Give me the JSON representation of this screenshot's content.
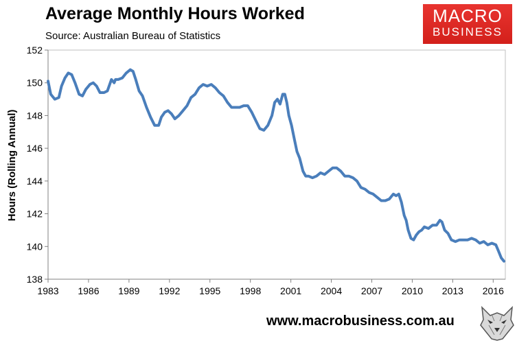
{
  "header": {
    "title": "Average Monthly Hours Worked",
    "subtitle": "Source: Australian Bureau of Statistics"
  },
  "logo": {
    "line1": "MACRO",
    "line2": "BUSINESS",
    "color": "#e02b26"
  },
  "footer": {
    "url": "www.macrobusiness.com.au",
    "mascot_icon": "wolf-head-icon"
  },
  "chart_data": {
    "type": "line",
    "title": "Average Monthly Hours Worked",
    "xlabel": "",
    "ylabel": "Hours (Rolling Annual)",
    "xlim": [
      1983.0,
      2016.9
    ],
    "ylim": [
      138,
      152
    ],
    "yticks": [
      138,
      140,
      142,
      144,
      146,
      148,
      150,
      152
    ],
    "xticks": [
      "1983",
      "1986",
      "1989",
      "1992",
      "1995",
      "1998",
      "2001",
      "2004",
      "2007",
      "2010",
      "2013",
      "2016"
    ],
    "grid": false,
    "line_color": "#4a7ebb",
    "series": [
      {
        "name": "",
        "x": [
          1983.0,
          1983.2,
          1983.5,
          1983.8,
          1984.0,
          1984.25,
          1984.5,
          1984.75,
          1985.0,
          1985.3,
          1985.55,
          1985.8,
          1986.1,
          1986.35,
          1986.6,
          1986.85,
          1987.15,
          1987.4,
          1987.7,
          1987.9,
          1988.0,
          1988.2,
          1988.5,
          1988.8,
          1989.1,
          1989.3,
          1989.5,
          1989.75,
          1990.0,
          1990.3,
          1990.6,
          1990.9,
          1991.2,
          1991.4,
          1991.65,
          1991.9,
          1992.15,
          1992.4,
          1992.7,
          1993.0,
          1993.3,
          1993.6,
          1993.9,
          1994.2,
          1994.5,
          1994.8,
          1995.1,
          1995.4,
          1995.7,
          1996.0,
          1996.3,
          1996.6,
          1996.9,
          1997.2,
          1997.5,
          1997.8,
          1998.1,
          1998.4,
          1998.7,
          1999.0,
          1999.3,
          1999.6,
          1999.8,
          2000.0,
          2000.2,
          2000.4,
          2000.55,
          2000.7,
          2000.85,
          2001.05,
          2001.25,
          2001.45,
          2001.65,
          2001.9,
          2002.1,
          2002.3,
          2002.6,
          2002.9,
          2003.2,
          2003.5,
          2003.8,
          2004.1,
          2004.4,
          2004.7,
          2005.0,
          2005.3,
          2005.6,
          2005.9,
          2006.2,
          2006.5,
          2006.8,
          2007.1,
          2007.4,
          2007.7,
          2008.0,
          2008.3,
          2008.6,
          2008.8,
          2009.0,
          2009.2,
          2009.4,
          2009.55,
          2009.7,
          2009.9,
          2010.1,
          2010.3,
          2010.5,
          2010.7,
          2010.9,
          2011.2,
          2011.5,
          2011.8,
          2012.05,
          2012.2,
          2012.4,
          2012.65,
          2012.9,
          2013.2,
          2013.5,
          2013.8,
          2014.1,
          2014.4,
          2014.7,
          2015.0,
          2015.3,
          2015.6,
          2015.9,
          2016.2,
          2016.4,
          2016.6,
          2016.8
        ],
        "values": [
          150.1,
          149.3,
          149.0,
          149.1,
          149.8,
          150.3,
          150.6,
          150.5,
          150.0,
          149.3,
          149.2,
          149.6,
          149.9,
          150.0,
          149.8,
          149.4,
          149.4,
          149.5,
          150.2,
          150.0,
          150.2,
          150.2,
          150.3,
          150.6,
          150.8,
          150.7,
          150.2,
          149.5,
          149.2,
          148.5,
          147.9,
          147.4,
          147.4,
          147.9,
          148.2,
          148.3,
          148.1,
          147.8,
          148.0,
          148.3,
          148.6,
          149.1,
          149.3,
          149.7,
          149.9,
          149.8,
          149.9,
          149.7,
          149.4,
          149.2,
          148.8,
          148.5,
          148.5,
          148.5,
          148.6,
          148.6,
          148.2,
          147.7,
          147.2,
          147.1,
          147.4,
          148.0,
          148.8,
          149.0,
          148.7,
          149.3,
          149.3,
          148.8,
          148.0,
          147.4,
          146.6,
          145.8,
          145.4,
          144.6,
          144.3,
          144.3,
          144.2,
          144.3,
          144.5,
          144.4,
          144.6,
          144.8,
          144.8,
          144.6,
          144.3,
          144.3,
          144.2,
          144.0,
          143.6,
          143.5,
          143.3,
          143.2,
          143.0,
          142.8,
          142.8,
          142.9,
          143.2,
          143.1,
          143.2,
          142.7,
          141.9,
          141.6,
          141.0,
          140.5,
          140.4,
          140.7,
          140.9,
          141.0,
          141.2,
          141.1,
          141.3,
          141.3,
          141.6,
          141.5,
          141.0,
          140.8,
          140.4,
          140.3,
          140.4,
          140.4,
          140.4,
          140.5,
          140.4,
          140.2,
          140.3,
          140.1,
          140.2,
          140.1,
          139.7,
          139.3,
          139.1
        ]
      }
    ]
  }
}
